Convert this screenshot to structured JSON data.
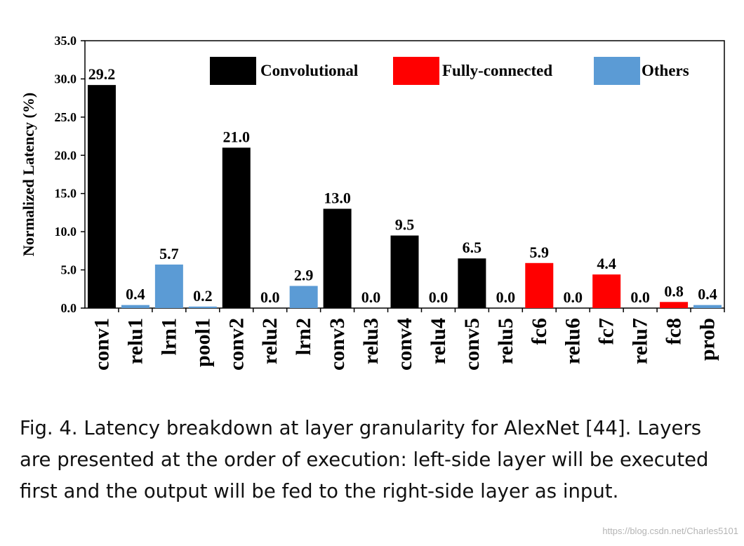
{
  "chart_data": {
    "type": "bar",
    "title": "",
    "xlabel": "",
    "ylabel": "Normalized Latency (%)",
    "ylim": [
      0,
      35
    ],
    "yticks": [
      "0.0",
      "5.0",
      "10.0",
      "15.0",
      "20.0",
      "25.0",
      "30.0",
      "35.0"
    ],
    "grid": false,
    "legend_placement": "top",
    "legend": [
      {
        "name": "Convolutional",
        "color": "#000000"
      },
      {
        "name": "Fully-connected",
        "color": "#ff0000"
      },
      {
        "name": "Others",
        "color": "#5b9bd5"
      }
    ],
    "categories": [
      "conv1",
      "relu1",
      "lrn1",
      "pool1",
      "conv2",
      "relu2",
      "lrn2",
      "conv3",
      "relu3",
      "conv4",
      "relu4",
      "conv5",
      "relu5",
      "fc6",
      "relu6",
      "fc7",
      "relu7",
      "fc8",
      "prob"
    ],
    "values": [
      29.2,
      0.4,
      5.7,
      0.2,
      21.0,
      0.0,
      2.9,
      13.0,
      0.0,
      9.5,
      0.0,
      6.5,
      0.0,
      5.9,
      0.0,
      4.4,
      0.0,
      0.8,
      0.4
    ],
    "value_labels": [
      "29.2",
      "0.4",
      "5.7",
      "0.2",
      "21.0",
      "0.0",
      "2.9",
      "13.0",
      "0.0",
      "9.5",
      "0.0",
      "6.5",
      "0.0",
      "5.9",
      "0.0",
      "4.4",
      "0.0",
      "0.8",
      "0.4"
    ],
    "groups": [
      "Convolutional",
      "Others",
      "Others",
      "Others",
      "Convolutional",
      "Others",
      "Others",
      "Convolutional",
      "Others",
      "Convolutional",
      "Others",
      "Convolutional",
      "Others",
      "Fully-connected",
      "Others",
      "Fully-connected",
      "Others",
      "Fully-connected",
      "Others"
    ]
  },
  "caption": "Fig. 4.  Latency breakdown at layer granularity for AlexNet [44]. Layers are presented at the order of execution: left-side layer will be executed first and the output will be fed to the right-side layer as input.",
  "watermark": "https://blog.csdn.net/Charles5101"
}
